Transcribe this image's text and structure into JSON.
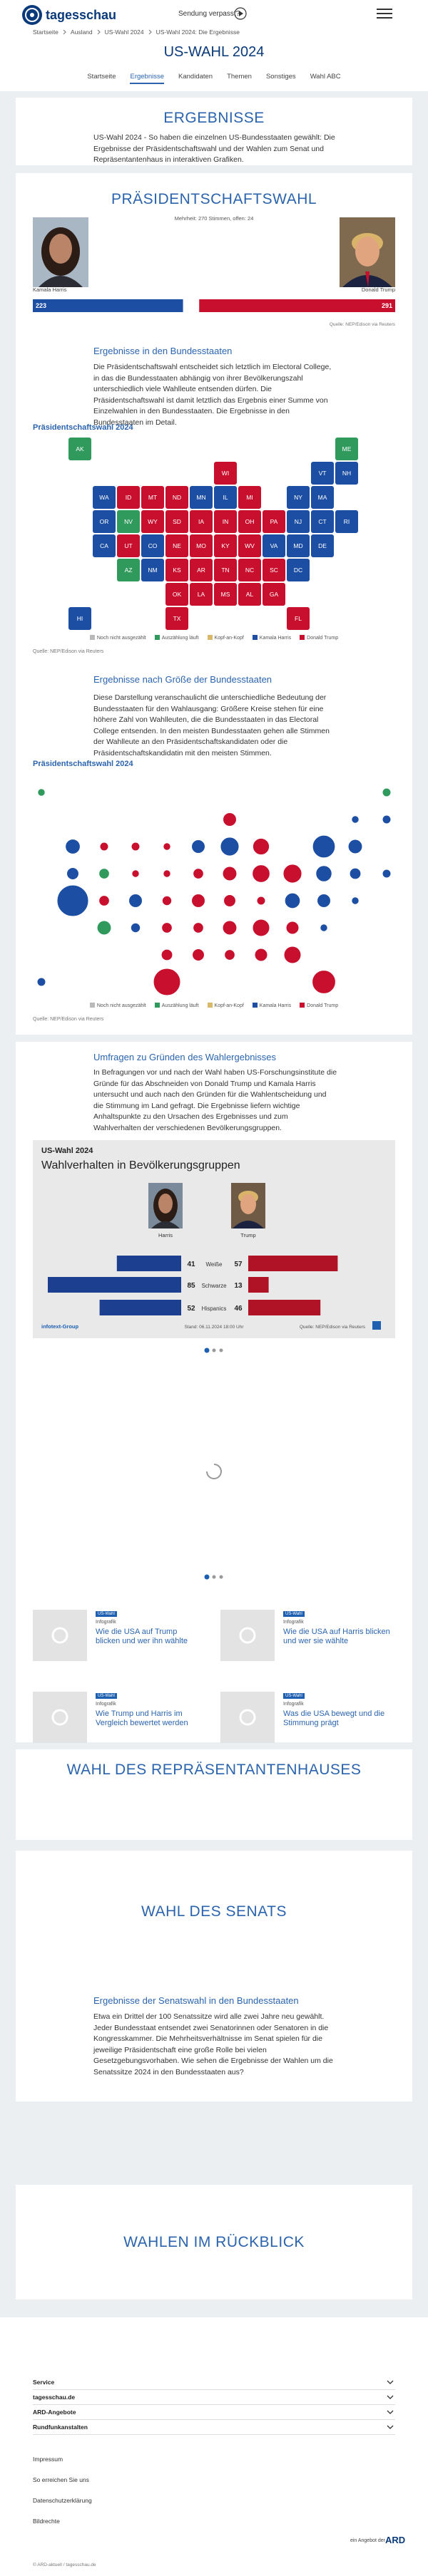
{
  "header": {
    "logo": "tagesschau",
    "missed": "Sendung verpasst?"
  },
  "breadcrumb": [
    "Startseite",
    "Ausland",
    "US-Wahl 2024",
    "US-Wahl 2024: Die Ergebnisse"
  ],
  "title": "US-WAHL 2024",
  "tabs": [
    "Startseite",
    "Ergebnisse",
    "Kandidaten",
    "Themen",
    "Sonstiges",
    "Wahl ABC"
  ],
  "active_tab": 1,
  "results": {
    "heading": "ERGEBNISSE",
    "text": "US-Wahl 2024 - So haben die einzelnen US-Bundesstaaten gewählt: Die Ergebnisse der Präsidentschaftswahl und der Wahlen zum Senat und Repräsentantenhaus in interaktiven Grafiken."
  },
  "president": {
    "heading": "PRÄSIDENTSCHAFTSWAHL",
    "majority": "Mehrheit: 270 Stimmen, offen: 24",
    "candidates": [
      {
        "name": "Kamala Harris",
        "electors": 223,
        "color": "#1c4fa3"
      },
      {
        "name": "Donald Trump",
        "electors": 291,
        "color": "#c8102e"
      }
    ],
    "xlim": [
      0,
      538
    ],
    "source": "Quelle: NEP/Edison via Reuters"
  },
  "states_section": {
    "heading": "Ergebnisse in den Bundesstaaten",
    "text": "Die Präsidentschaftswahl entscheidet sich letztlich im Electoral College, in das die Bundesstaaten abhängig von ihrer Bevölkerungszahl unterschiedlich viele Wahlleute entsenden dürfen. Die Präsidentschaftswahl ist damit letztlich das Ergebnis einer Summe von Einzelwahlen in den Bundesstaaten. Die Ergebnisse in den Bundesstaaten im Detail."
  },
  "size_section": {
    "heading": "Ergebnisse nach Größe der Bundesstaaten",
    "text": "Diese Darstellung veranschaulicht die unterschiedliche Bedeutung der Bundesstaaten für den Wahlausgang: Größere Kreise stehen für eine höhere Zahl von Wahlleuten, die die Bundesstaaten in das Electoral College entsenden. In den meisten Bundesstaaten gehen alle Stimmen der Wahlleute an den Präsidentschaftskandidaten oder die Präsidentschaftskandidatin mit den meisten Stimmen."
  },
  "chart_data": [
    {
      "type": "tile-map",
      "title": "Präsidentschaftswahl 2024",
      "legend": [
        {
          "name": "Noch nicht ausgezählt",
          "color": "#b9b9b9"
        },
        {
          "name": "Auszählung läuft",
          "color": "#2f9a5c"
        },
        {
          "name": "Kopf-an-Kopf",
          "color": "#d9b86a"
        },
        {
          "name": "Kamala Harris",
          "color": "#1c4fa3"
        },
        {
          "name": "Donald Trump",
          "color": "#c8102e"
        }
      ],
      "states": [
        "AK",
        "ME",
        "WI",
        "VT",
        "NH",
        "WA",
        "ID",
        "MT",
        "ND",
        "MN",
        "IL",
        "MI",
        "NY",
        "MA",
        "OR",
        "NV",
        "WY",
        "SD",
        "IA",
        "IN",
        "OH",
        "PA",
        "NJ",
        "CT",
        "RI",
        "CA",
        "UT",
        "CO",
        "NE",
        "MO",
        "KY",
        "WV",
        "VA",
        "MD",
        "DE",
        "AZ",
        "NM",
        "KS",
        "AR",
        "TN",
        "NC",
        "SC",
        "DC",
        "OK",
        "LA",
        "MS",
        "AL",
        "GA",
        "HI",
        "TX",
        "FL"
      ],
      "values": [
        1,
        1,
        4,
        3,
        3,
        3,
        4,
        4,
        4,
        3,
        3,
        4,
        3,
        3,
        3,
        1,
        4,
        4,
        4,
        4,
        4,
        4,
        3,
        3,
        3,
        3,
        4,
        3,
        4,
        4,
        4,
        4,
        3,
        3,
        3,
        1,
        3,
        4,
        4,
        4,
        4,
        4,
        3,
        4,
        4,
        4,
        4,
        4,
        3,
        4,
        4
      ],
      "source": "Quelle: NEP/Edison via Reuters"
    },
    {
      "type": "bubble-map",
      "title": "Präsidentschaftswahl 2024",
      "legend": [
        {
          "name": "Noch nicht ausgezählt",
          "color": "#b9b9b9"
        },
        {
          "name": "Auszählung läuft",
          "color": "#2f9a5c"
        },
        {
          "name": "Kopf-an-Kopf",
          "color": "#d9b86a"
        },
        {
          "name": "Kamala Harris",
          "color": "#1c4fa3"
        },
        {
          "name": "Donald Trump",
          "color": "#c8102e"
        }
      ],
      "values": [
        1,
        1,
        4,
        3,
        3,
        3,
        4,
        4,
        4,
        3,
        3,
        4,
        3,
        3,
        3,
        1,
        4,
        4,
        4,
        4,
        4,
        4,
        3,
        3,
        3,
        3,
        4,
        3,
        4,
        4,
        4,
        4,
        3,
        3,
        3,
        1,
        3,
        4,
        4,
        4,
        4,
        4,
        3,
        4,
        4,
        4,
        4,
        4,
        3,
        4,
        4
      ],
      "sizes": [
        3,
        4,
        10,
        3,
        4,
        12,
        4,
        4,
        3,
        10,
        19,
        15,
        28,
        11,
        8,
        6,
        3,
        3,
        6,
        11,
        17,
        19,
        14,
        7,
        4,
        54,
        6,
        10,
        5,
        10,
        8,
        4,
        13,
        10,
        3,
        11,
        5,
        6,
        6,
        11,
        16,
        9,
        3,
        7,
        8,
        6,
        9,
        16,
        4,
        40,
        30
      ],
      "source": "Quelle: NEP/Edison via Reuters"
    },
    {
      "type": "diverging-bar",
      "kicker": "US-Wahl 2024",
      "title": "Wahlverhalten in Bevölkerungsgruppen",
      "categories": [
        "Weiße",
        "Schwarze",
        "Hispanics"
      ],
      "series": [
        {
          "name": "Harris",
          "color": "#1d3f8f",
          "values": [
            41,
            85,
            52
          ]
        },
        {
          "name": "Trump",
          "color": "#b01226",
          "values": [
            57,
            13,
            46
          ]
        }
      ],
      "xlim": [
        0,
        100
      ],
      "credit": "infotext-Group",
      "date": "Stand: 06.11.2024 18:00 Uhr",
      "source": "Quelle: NEP/Edison via Reuters"
    }
  ],
  "polls": {
    "heading": "Umfragen zu Gründen des Wahlergebnisses",
    "text": "In Befragungen vor und nach der Wahl haben US-Forschungsinstitute die Gründe für das Abschneiden von Donald Trump und Kamala Harris untersucht und auch nach den Gründen für die Wahlentscheidung und die Stimmung im Land gefragt. Die Ergebnisse liefern wichtige Anhaltspunkte zu den Ursachen des Ergebnisses und zum Wahlverhalten der verschiedenen Bevölkerungsgruppen."
  },
  "teasers": [
    {
      "badge": "US-Wahl",
      "kicker": "Infografik",
      "title": "Wie die USA auf Trump blicken und wer ihn wählte"
    },
    {
      "badge": "US-Wahl",
      "kicker": "Infografik",
      "title": "Wie die USA auf Harris blicken und wer sie wählte"
    },
    {
      "badge": "US-Wahl",
      "kicker": "Infografik",
      "title": "Wie Trump und Harris im Vergleich bewertet werden"
    },
    {
      "badge": "US-Wahl",
      "kicker": "Infografik",
      "title": "Was die USA bewegt und die Stimmung prägt"
    }
  ],
  "house": {
    "heading": "WAHL DES REPRÄSENTANTENHAUSES"
  },
  "senate": {
    "heading": "WAHL DES SENATS",
    "subheading": "Ergebnisse der Senatswahl in den Bundesstaaten",
    "text": "Etwa ein Drittel der 100 Senatssitze wird alle zwei Jahre neu gewählt. Jeder Bundesstaat entsendet zwei Senatorinnen oder Senatoren in die Kongresskammer. Die Mehrheitsverhältnisse im Senat spielen für die jeweilige Präsidentschaft eine große Rolle bei vielen Gesetzgebungsvorhaben. Wie sehen die Ergebnisse der Wahlen um die Senatssitze 2024 in den Bundesstaaten aus?"
  },
  "review": {
    "heading": "WAHLEN IM RÜCKBLICK"
  },
  "footer": {
    "menus": [
      "Service",
      "tagesschau.de",
      "ARD-Angebote",
      "Rundfunkanstalten"
    ],
    "links": [
      "Impressum",
      "So erreichen Sie uns",
      "Datenschutzerklärung",
      "Bildrechte"
    ],
    "ard": "ein Angebot der",
    "ard_logo": "ARD",
    "copyright": "© ARD-aktuell / tagesschau.de"
  }
}
